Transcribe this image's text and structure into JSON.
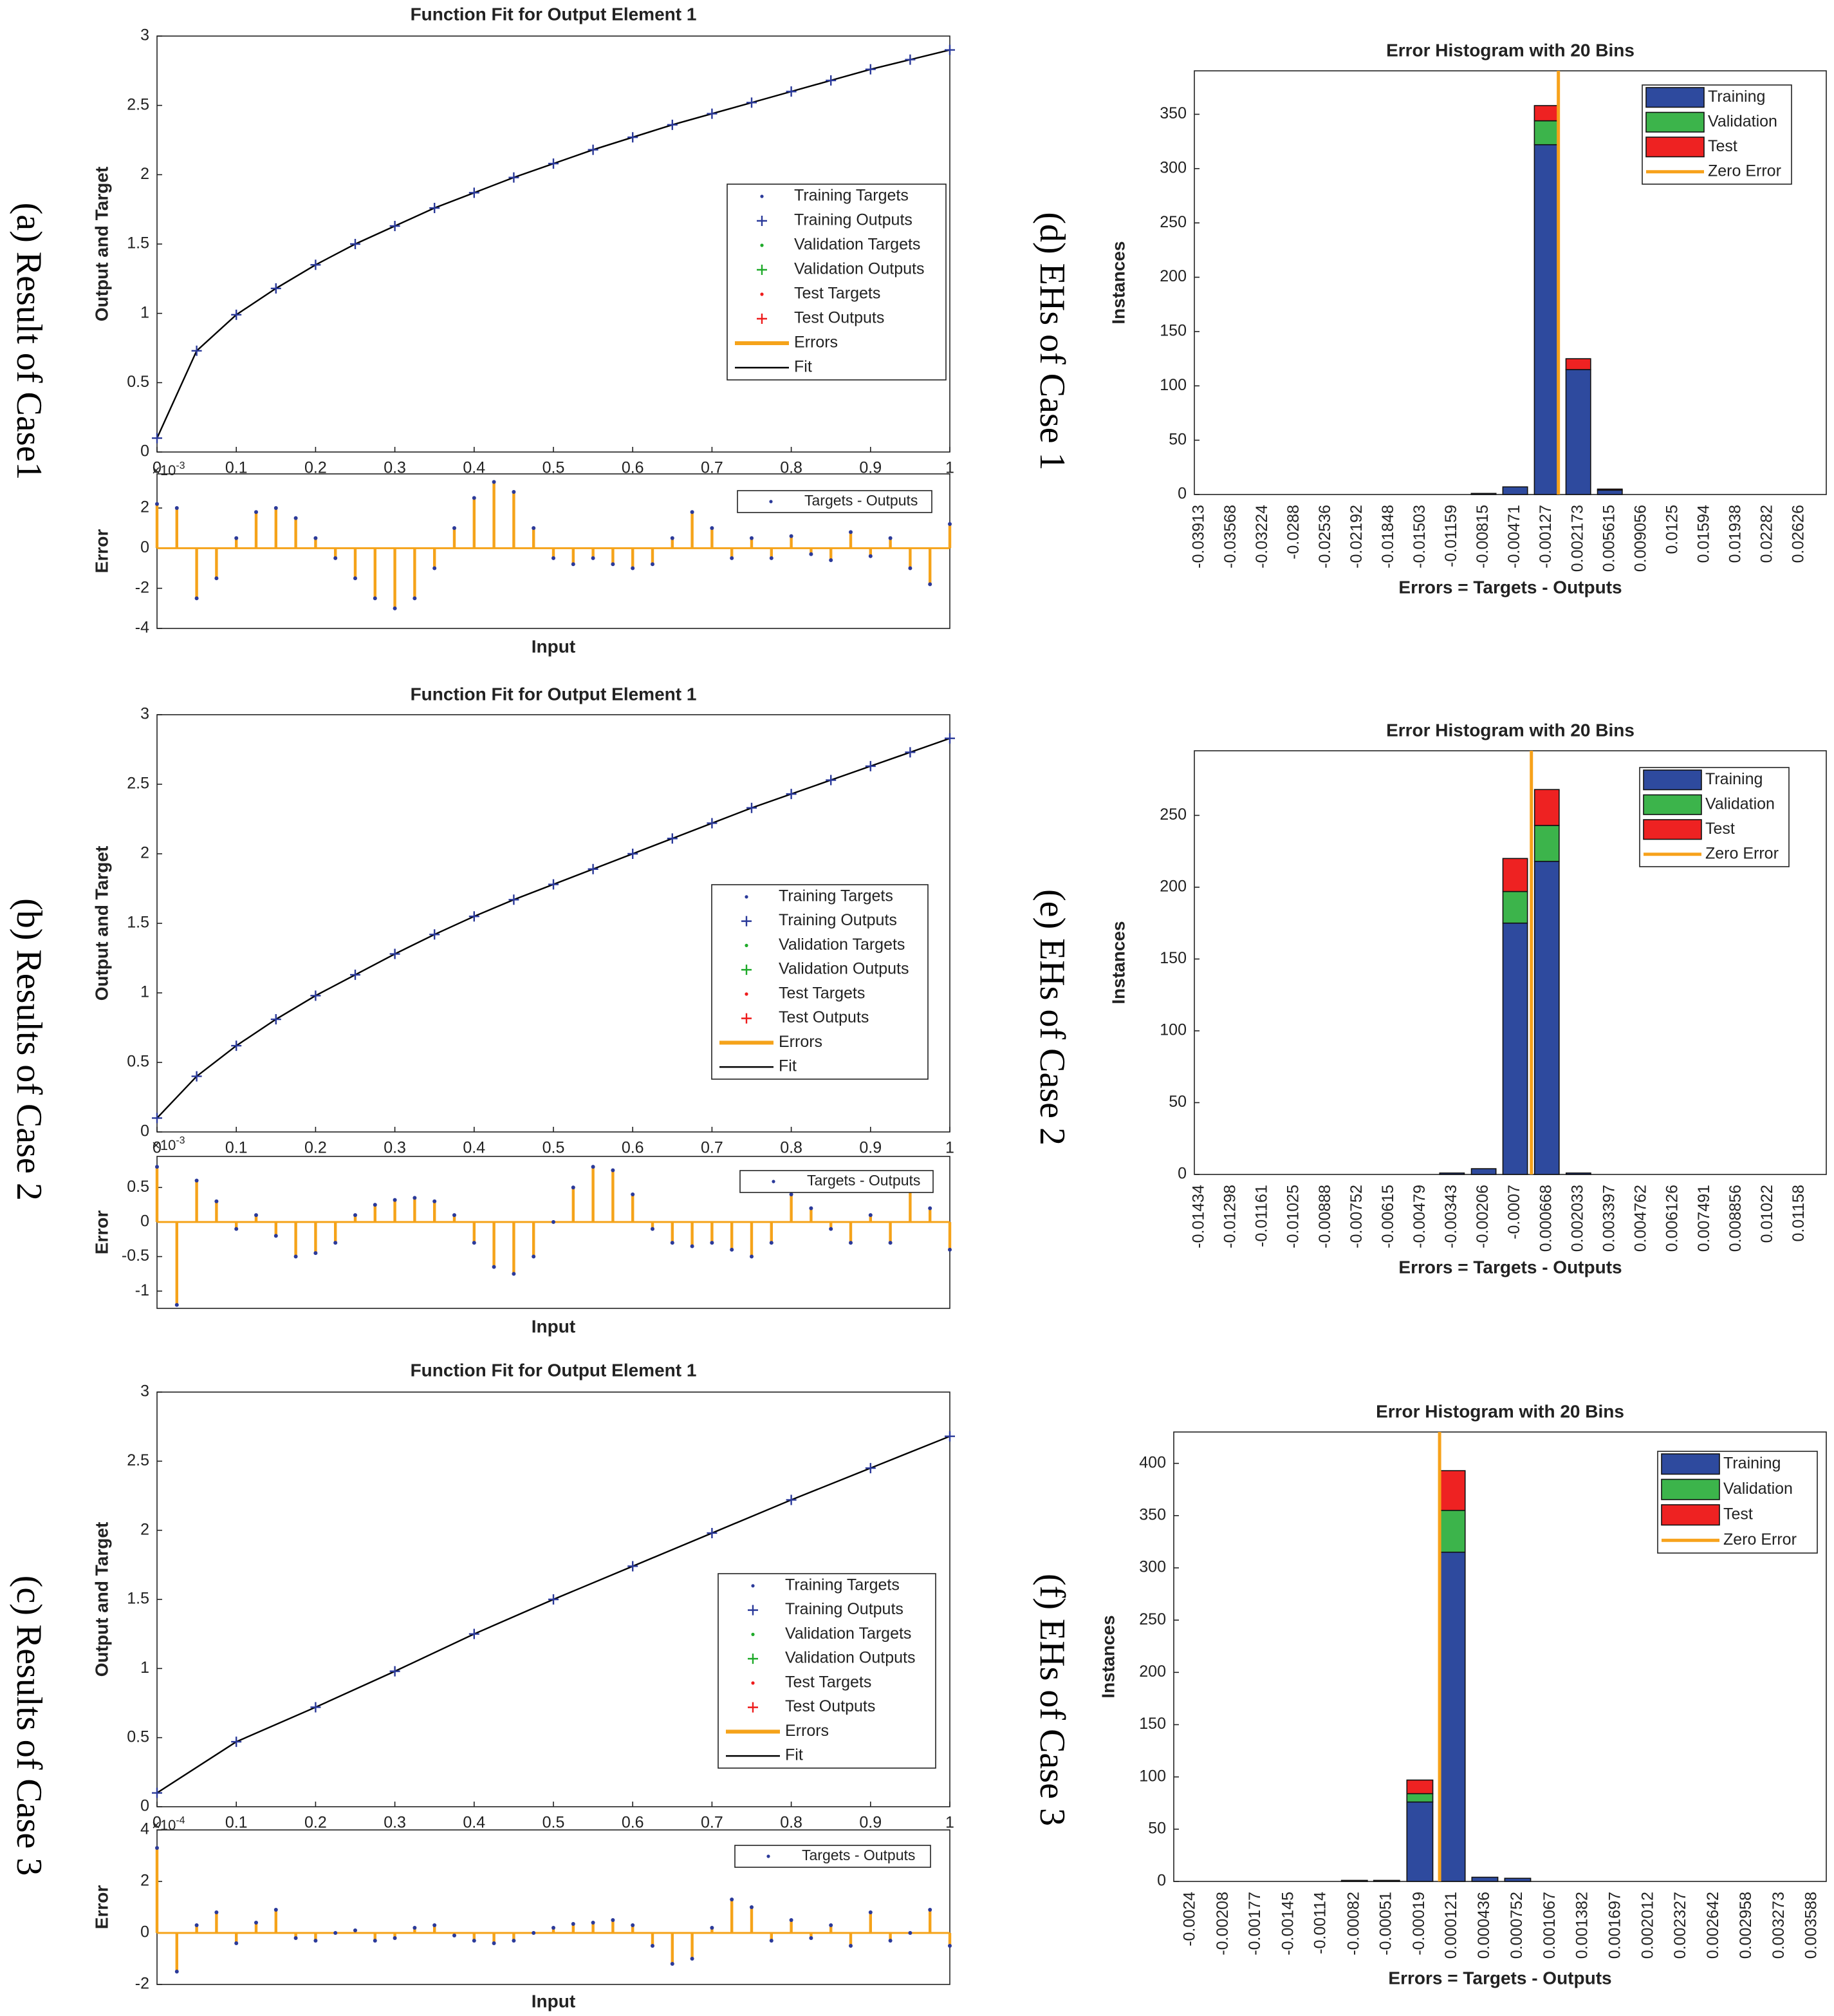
{
  "captions": [
    "(a) Result of Case1",
    "(b) Results of Case 2",
    "(c) Results of Case 3",
    "(d) EHs of Case 1",
    "(e) EHs  of Case 2",
    "(f) EHs of Case 3"
  ],
  "chart_data": [
    {
      "type": "line",
      "title": "Function Fit for Output Element 1",
      "ylabel": "Output and Target",
      "x": [
        0,
        0.05,
        0.1,
        0.15,
        0.2,
        0.25,
        0.3,
        0.35,
        0.4,
        0.45,
        0.5,
        0.55,
        0.6,
        0.65,
        0.7,
        0.75,
        0.8,
        0.85,
        0.9,
        0.95,
        1
      ],
      "series": [
        {
          "name": "Fit",
          "color": "#000000",
          "values": [
            0.1,
            0.73,
            0.99,
            1.18,
            1.35,
            1.5,
            1.63,
            1.76,
            1.87,
            1.98,
            2.08,
            2.18,
            2.27,
            2.36,
            2.44,
            2.52,
            2.6,
            2.68,
            2.76,
            2.83,
            2.9
          ]
        }
      ],
      "legend": [
        {
          "name": "Training Targets",
          "color": "#2b3a9a",
          "marker": "dot"
        },
        {
          "name": "Training Outputs",
          "color": "#2b3a9a",
          "marker": "plus"
        },
        {
          "name": "Validation Targets",
          "color": "#1faa2a",
          "marker": "dot"
        },
        {
          "name": "Validation Outputs",
          "color": "#1faa2a",
          "marker": "plus"
        },
        {
          "name": "Test Targets",
          "color": "#ee1c1c",
          "marker": "dot"
        },
        {
          "name": "Test Outputs",
          "color": "#ee1c1c",
          "marker": "plus"
        },
        {
          "name": "Errors",
          "color": "#f5a31a",
          "marker": "line"
        },
        {
          "name": "Fit",
          "color": "#000000",
          "marker": "line"
        }
      ],
      "xlim": [
        0,
        1
      ],
      "ylim": [
        0,
        3
      ],
      "xticks": [
        0,
        0.1,
        0.2,
        0.3,
        0.4,
        0.5,
        0.6,
        0.7,
        0.8,
        0.9,
        1
      ],
      "yticks": [
        0,
        0.5,
        1,
        1.5,
        2,
        2.5,
        3
      ]
    },
    {
      "type": "stem",
      "xlabel": "Input",
      "ylabel": "Error",
      "exponent_base": "×10",
      "exponent": "-3",
      "x": [
        0,
        0.025,
        0.05,
        0.075,
        0.1,
        0.125,
        0.15,
        0.175,
        0.2,
        0.225,
        0.25,
        0.275,
        0.3,
        0.325,
        0.35,
        0.375,
        0.4,
        0.425,
        0.45,
        0.475,
        0.5,
        0.525,
        0.55,
        0.575,
        0.6,
        0.625,
        0.65,
        0.675,
        0.7,
        0.725,
        0.75,
        0.775,
        0.8,
        0.825,
        0.85,
        0.875,
        0.9,
        0.925,
        0.95,
        0.975,
        1
      ],
      "series": [
        {
          "name": "Targets - Outputs",
          "color": "#f5a31a",
          "marker_color": "#2b3a9a",
          "values": [
            2.2,
            2.0,
            -2.5,
            -1.5,
            0.5,
            1.8,
            2.0,
            1.5,
            0.5,
            -0.5,
            -1.5,
            -2.5,
            -3.0,
            -2.5,
            -1.0,
            1.0,
            2.5,
            3.3,
            2.8,
            1.0,
            -0.5,
            -0.8,
            -0.5,
            -0.8,
            -1.0,
            -0.8,
            0.5,
            1.8,
            1.0,
            -0.5,
            0.5,
            -0.5,
            0.6,
            -0.3,
            -0.6,
            0.8,
            -0.4,
            0.5,
            -1.0,
            -1.8,
            1.2
          ]
        }
      ],
      "xlim": [
        0,
        1
      ],
      "ylim": [
        -4,
        3.7
      ],
      "yticks": [
        -4,
        -2,
        0,
        2
      ]
    },
    {
      "type": "line",
      "title": "Function Fit for Output Element 1",
      "ylabel": "Output and Target",
      "x": [
        0,
        0.05,
        0.1,
        0.15,
        0.2,
        0.25,
        0.3,
        0.35,
        0.4,
        0.45,
        0.5,
        0.55,
        0.6,
        0.65,
        0.7,
        0.75,
        0.8,
        0.85,
        0.9,
        0.95,
        1
      ],
      "series": [
        {
          "name": "Fit",
          "color": "#000000",
          "values": [
            0.1,
            0.4,
            0.62,
            0.81,
            0.98,
            1.13,
            1.28,
            1.42,
            1.55,
            1.67,
            1.78,
            1.89,
            2.0,
            2.11,
            2.22,
            2.33,
            2.43,
            2.53,
            2.63,
            2.73,
            2.83
          ]
        }
      ],
      "legend": [
        {
          "name": "Training Targets",
          "color": "#2b3a9a",
          "marker": "dot"
        },
        {
          "name": "Training Outputs",
          "color": "#2b3a9a",
          "marker": "plus"
        },
        {
          "name": "Validation Targets",
          "color": "#1faa2a",
          "marker": "dot"
        },
        {
          "name": "Validation Outputs",
          "color": "#1faa2a",
          "marker": "plus"
        },
        {
          "name": "Test Targets",
          "color": "#ee1c1c",
          "marker": "dot"
        },
        {
          "name": "Test Outputs",
          "color": "#ee1c1c",
          "marker": "plus"
        },
        {
          "name": "Errors",
          "color": "#f5a31a",
          "marker": "line"
        },
        {
          "name": "Fit",
          "color": "#000000",
          "marker": "line"
        }
      ],
      "xlim": [
        0,
        1
      ],
      "ylim": [
        0,
        3
      ],
      "xticks": [
        0,
        0.1,
        0.2,
        0.3,
        0.4,
        0.5,
        0.6,
        0.7,
        0.8,
        0.9,
        1
      ],
      "yticks": [
        0,
        0.5,
        1,
        1.5,
        2,
        2.5,
        3
      ]
    },
    {
      "type": "stem",
      "xlabel": "Input",
      "ylabel": "Error",
      "exponent_base": "×10",
      "exponent": "-3",
      "x": [
        0,
        0.025,
        0.05,
        0.075,
        0.1,
        0.125,
        0.15,
        0.175,
        0.2,
        0.225,
        0.25,
        0.275,
        0.3,
        0.325,
        0.35,
        0.375,
        0.4,
        0.425,
        0.45,
        0.475,
        0.5,
        0.525,
        0.55,
        0.575,
        0.6,
        0.625,
        0.65,
        0.675,
        0.7,
        0.725,
        0.75,
        0.775,
        0.8,
        0.825,
        0.85,
        0.875,
        0.9,
        0.925,
        0.95,
        0.975,
        1
      ],
      "series": [
        {
          "name": "Targets - Outputs",
          "color": "#f5a31a",
          "marker_color": "#2b3a9a",
          "values": [
            0.8,
            -1.2,
            0.6,
            0.3,
            -0.1,
            0.1,
            -0.2,
            -0.5,
            -0.45,
            -0.3,
            0.1,
            0.25,
            0.32,
            0.35,
            0.3,
            0.1,
            -0.3,
            -0.65,
            -0.75,
            -0.5,
            0.0,
            0.5,
            0.8,
            0.75,
            0.4,
            -0.1,
            -0.3,
            -0.35,
            -0.3,
            -0.4,
            -0.5,
            -0.3,
            0.4,
            0.2,
            -0.1,
            -0.3,
            0.1,
            -0.3,
            0.6,
            0.2,
            -0.4
          ]
        }
      ],
      "xlim": [
        0,
        1
      ],
      "ylim": [
        -1.25,
        0.95
      ],
      "yticks": [
        -1,
        -0.5,
        0,
        0.5
      ]
    },
    {
      "type": "line",
      "title": "Function Fit for Output Element 1",
      "ylabel": "Output and Target",
      "x": [
        0,
        0.1,
        0.2,
        0.3,
        0.4,
        0.5,
        0.6,
        0.7,
        0.8,
        0.9,
        1
      ],
      "series": [
        {
          "name": "Fit",
          "color": "#000000",
          "values": [
            0.1,
            0.47,
            0.72,
            0.98,
            1.25,
            1.5,
            1.74,
            1.98,
            2.22,
            2.45,
            2.68
          ]
        }
      ],
      "legend": [
        {
          "name": "Training Targets",
          "color": "#2b3a9a",
          "marker": "dot"
        },
        {
          "name": "Training Outputs",
          "color": "#2b3a9a",
          "marker": "plus"
        },
        {
          "name": "Validation Targets",
          "color": "#1faa2a",
          "marker": "dot"
        },
        {
          "name": "Validation Outputs",
          "color": "#1faa2a",
          "marker": "plus"
        },
        {
          "name": "Test Targets",
          "color": "#ee1c1c",
          "marker": "dot"
        },
        {
          "name": "Test Outputs",
          "color": "#ee1c1c",
          "marker": "plus"
        },
        {
          "name": "Errors",
          "color": "#f5a31a",
          "marker": "line"
        },
        {
          "name": "Fit",
          "color": "#000000",
          "marker": "line"
        }
      ],
      "xlim": [
        0,
        1
      ],
      "ylim": [
        0,
        3
      ],
      "xticks": [
        0,
        0.1,
        0.2,
        0.3,
        0.4,
        0.5,
        0.6,
        0.7,
        0.8,
        0.9,
        1
      ],
      "yticks": [
        0,
        0.5,
        1,
        1.5,
        2,
        2.5,
        3
      ]
    },
    {
      "type": "stem",
      "xlabel": "Input",
      "ylabel": "Error",
      "exponent_base": "×10",
      "exponent": "-4",
      "x": [
        0,
        0.025,
        0.05,
        0.075,
        0.1,
        0.125,
        0.15,
        0.175,
        0.2,
        0.225,
        0.25,
        0.275,
        0.3,
        0.325,
        0.35,
        0.375,
        0.4,
        0.425,
        0.45,
        0.475,
        0.5,
        0.525,
        0.55,
        0.575,
        0.6,
        0.625,
        0.65,
        0.675,
        0.7,
        0.725,
        0.75,
        0.775,
        0.8,
        0.825,
        0.85,
        0.875,
        0.9,
        0.925,
        0.95,
        0.975,
        1
      ],
      "series": [
        {
          "name": "Targets - Outputs",
          "color": "#f5a31a",
          "marker_color": "#2b3a9a",
          "values": [
            3.3,
            -1.5,
            0.3,
            0.8,
            -0.4,
            0.4,
            0.9,
            -0.2,
            -0.3,
            0.0,
            0.1,
            -0.3,
            -0.2,
            0.2,
            0.3,
            -0.1,
            -0.3,
            -0.4,
            -0.3,
            0.0,
            0.2,
            0.35,
            0.4,
            0.5,
            0.3,
            -0.5,
            -1.2,
            -1.0,
            0.2,
            1.3,
            1.0,
            -0.3,
            0.5,
            -0.2,
            0.3,
            -0.5,
            0.8,
            -0.3,
            0.0,
            0.9,
            -0.5
          ]
        }
      ],
      "xlim": [
        0,
        1
      ],
      "ylim": [
        -2,
        4
      ],
      "yticks": [
        -2,
        0,
        2,
        4
      ]
    },
    {
      "type": "histogram",
      "title": "Error Histogram with 20 Bins",
      "xlabel": "Errors = Targets - Outputs",
      "ylabel": "Instances",
      "x": [
        -0.03913,
        -0.03568,
        -0.03224,
        -0.0288,
        -0.02536,
        -0.02192,
        -0.01848,
        -0.01503,
        -0.01159,
        -0.00815,
        -0.00471,
        -0.00127,
        0.002173,
        0.005615,
        0.009056,
        0.0125,
        0.01594,
        0.01938,
        0.02282,
        0.02626
      ],
      "series": [
        {
          "name": "Training",
          "color": "#2e4a9e",
          "values": [
            0,
            0,
            0,
            0,
            0,
            0,
            0,
            0,
            0,
            1,
            7,
            322,
            115,
            4,
            0,
            0,
            0,
            0,
            0,
            0
          ]
        },
        {
          "name": "Validation",
          "color": "#3cb44b",
          "values": [
            0,
            0,
            0,
            0,
            0,
            0,
            0,
            0,
            0,
            0,
            0,
            22,
            0,
            0,
            0,
            0,
            0,
            0,
            0,
            0
          ]
        },
        {
          "name": "Test",
          "color": "#ee2222",
          "values": [
            0,
            0,
            0,
            0,
            0,
            0,
            0,
            0,
            0,
            0,
            0,
            14,
            10,
            1,
            0,
            0,
            0,
            0,
            0,
            0
          ]
        }
      ],
      "zero_error": {
        "name": "Zero Error",
        "color": "#f7a21b",
        "value": 0
      },
      "xlim": [
        -0.03969,
        0.02921
      ],
      "ylim": [
        0,
        390
      ],
      "yticks": [
        0,
        50,
        100,
        150,
        200,
        250,
        300,
        350
      ]
    },
    {
      "type": "histogram",
      "title": "Error Histogram with 20 Bins",
      "xlabel": "Errors = Targets - Outputs",
      "ylabel": "Instances",
      "x": [
        -0.01434,
        -0.01298,
        -0.01161,
        -0.01025,
        -0.00888,
        -0.00752,
        -0.00615,
        -0.00479,
        -0.00343,
        -0.00206,
        -0.0007,
        0.000668,
        0.002033,
        0.003397,
        0.004762,
        0.006126,
        0.007491,
        0.008856,
        0.01022,
        0.01158
      ],
      "series": [
        {
          "name": "Training",
          "color": "#2e4a9e",
          "values": [
            0,
            0,
            0,
            0,
            0,
            0,
            0,
            0,
            1,
            4,
            175,
            218,
            1,
            0,
            0,
            0,
            0,
            0,
            0,
            0
          ]
        },
        {
          "name": "Validation",
          "color": "#3cb44b",
          "values": [
            0,
            0,
            0,
            0,
            0,
            0,
            0,
            0,
            0,
            0,
            22,
            25,
            0,
            0,
            0,
            0,
            0,
            0,
            0,
            0
          ]
        },
        {
          "name": "Test",
          "color": "#ee2222",
          "values": [
            0,
            0,
            0,
            0,
            0,
            0,
            0,
            0,
            0,
            0,
            23,
            25,
            0,
            0,
            0,
            0,
            0,
            0,
            0,
            0
          ]
        }
      ],
      "zero_error": {
        "name": "Zero Error",
        "color": "#f7a21b",
        "value": 0
      },
      "xlim": [
        -0.01456,
        0.01274
      ],
      "ylim": [
        0,
        295
      ],
      "yticks": [
        0,
        50,
        100,
        150,
        200,
        250
      ]
    },
    {
      "type": "histogram",
      "title": "Error Histogram with 20 Bins",
      "xlabel": "Errors = Targets - Outputs",
      "ylabel": "Instances",
      "x": [
        -0.0024,
        -0.00208,
        -0.00177,
        -0.00145,
        -0.00114,
        -0.00082,
        -0.00051,
        -0.00019,
        0.000121,
        0.000436,
        0.000752,
        0.001067,
        0.001382,
        0.001697,
        0.002012,
        0.002327,
        0.002642,
        0.002958,
        0.003273,
        0.003588
      ],
      "series": [
        {
          "name": "Training",
          "color": "#2e4a9e",
          "values": [
            0,
            0,
            0,
            0,
            0,
            1,
            1,
            76,
            315,
            4,
            3,
            0,
            0,
            0,
            0,
            0,
            0,
            0,
            0,
            0
          ]
        },
        {
          "name": "Validation",
          "color": "#3cb44b",
          "values": [
            0,
            0,
            0,
            0,
            0,
            0,
            0,
            8,
            40,
            0,
            0,
            0,
            0,
            0,
            0,
            0,
            0,
            0,
            0,
            0
          ]
        },
        {
          "name": "Test",
          "color": "#ee2222",
          "values": [
            0,
            0,
            0,
            0,
            0,
            0,
            0,
            13,
            38,
            0,
            0,
            0,
            0,
            0,
            0,
            0,
            0,
            0,
            0,
            0
          ]
        }
      ],
      "zero_error": {
        "name": "Zero Error",
        "color": "#f7a21b",
        "value": 0
      },
      "xlim": [
        -0.00256,
        0.003724
      ],
      "ylim": [
        0,
        430
      ],
      "yticks": [
        0,
        50,
        100,
        150,
        200,
        250,
        300,
        350,
        400
      ]
    }
  ]
}
